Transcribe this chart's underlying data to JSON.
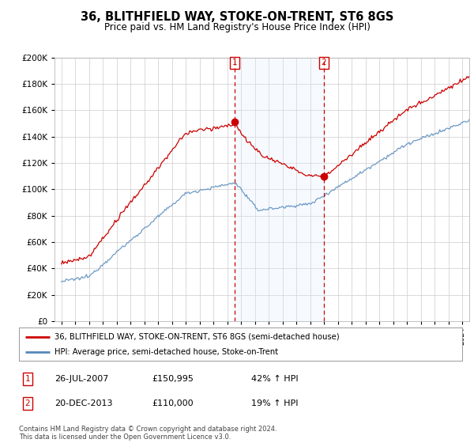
{
  "title": "36, BLITHFIELD WAY, STOKE-ON-TRENT, ST6 8GS",
  "subtitle": "Price paid vs. HM Land Registry's House Price Index (HPI)",
  "legend_line1": "36, BLITHFIELD WAY, STOKE-ON-TRENT, ST6 8GS (semi-detached house)",
  "legend_line2": "HPI: Average price, semi-detached house, Stoke-on-Trent",
  "footnote": "Contains HM Land Registry data © Crown copyright and database right 2024.\nThis data is licensed under the Open Government Licence v3.0.",
  "marker1_label": "1",
  "marker1_date": "26-JUL-2007",
  "marker1_price": "£150,995",
  "marker1_hpi": "42% ↑ HPI",
  "marker2_label": "2",
  "marker2_date": "20-DEC-2013",
  "marker2_price": "£110,000",
  "marker2_hpi": "19% ↑ HPI",
  "vline1_x": 2007.55,
  "vline2_x": 2013.97,
  "red_color": "#cc0000",
  "blue_color": "#5588bb",
  "shade_color": "#ddeeff",
  "background_color": "#ffffff",
  "grid_color": "#cccccc",
  "ylim": [
    0,
    200000
  ],
  "xlim": [
    1994.5,
    2024.5
  ]
}
